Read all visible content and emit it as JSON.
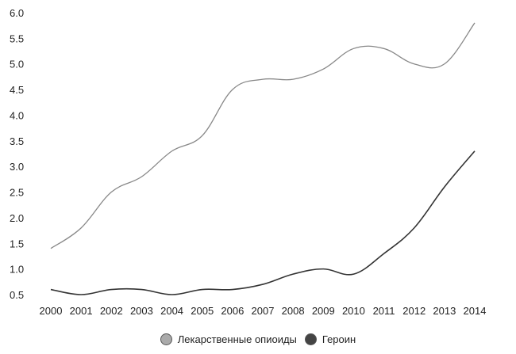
{
  "chart_data": {
    "type": "line",
    "title": "",
    "xlabel": "",
    "ylabel": "",
    "x": [
      "2000",
      "2001",
      "2002",
      "2003",
      "2004",
      "2005",
      "2006",
      "2007",
      "2008",
      "2009",
      "2010",
      "2011",
      "2012",
      "2013",
      "2014"
    ],
    "ylim": [
      0.5,
      6.0
    ],
    "yticks": [
      "0.5",
      "1.0",
      "1.5",
      "2.0",
      "2.5",
      "3.0",
      "3.5",
      "4.0",
      "4.5",
      "5.0",
      "5.5",
      "6.0"
    ],
    "grid": false,
    "legend_position": "bottom",
    "series": [
      {
        "name": "Лекарственные опиоиды",
        "color": "#888888",
        "values": [
          1.4,
          1.8,
          2.5,
          2.8,
          3.3,
          3.6,
          4.5,
          4.7,
          4.7,
          4.9,
          5.3,
          5.3,
          5.0,
          5.0,
          5.8
        ]
      },
      {
        "name": "Героин",
        "color": "#333333",
        "values": [
          0.6,
          0.5,
          0.6,
          0.6,
          0.5,
          0.6,
          0.6,
          0.7,
          0.9,
          1.0,
          0.9,
          1.3,
          1.8,
          2.6,
          3.3
        ]
      }
    ]
  }
}
